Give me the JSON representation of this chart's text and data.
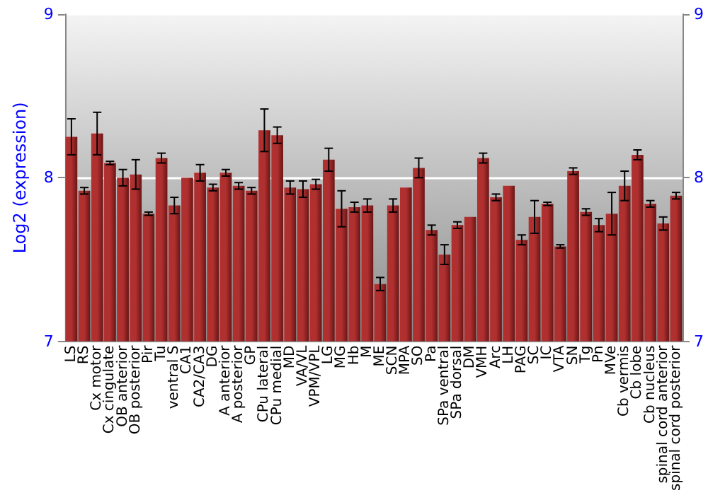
{
  "chart_data": {
    "type": "bar",
    "ylabel": "Log2 (expression)",
    "categories": [
      "LS",
      "RS",
      "Cx motor",
      "Cx cingulate",
      "OB anterior",
      "OB posterior",
      "Pir",
      "Tu",
      "ventral S",
      "CA1",
      "CA2/CA3",
      "DG",
      "A anterior",
      "A posterior",
      "GP",
      "CPu lateral",
      "CPu medial",
      "MD",
      "VA/VL",
      "VPM/VPL",
      "LG",
      "MG",
      "Hb",
      "M",
      "ME",
      "SCN",
      "MPA",
      "SO",
      "Pa",
      "SPa ventral",
      "SPa dorsal",
      "DM",
      "VMH",
      "Arc",
      "LH",
      "PAG",
      "SC",
      "IC",
      "VTA",
      "SN",
      "Tg",
      "Pn",
      "MVe",
      "Cb vermis",
      "Cb lobe",
      "Cb nucleus",
      "spinal cord anterior",
      "spinal cord posterior"
    ],
    "values": [
      8.25,
      7.92,
      8.27,
      8.09,
      8.0,
      8.02,
      7.78,
      8.12,
      7.83,
      8.0,
      8.03,
      7.94,
      8.03,
      7.95,
      7.92,
      8.29,
      8.26,
      7.94,
      7.93,
      7.96,
      8.11,
      7.81,
      7.82,
      7.83,
      7.35,
      7.83,
      7.94,
      8.06,
      7.68,
      7.53,
      7.71,
      7.76,
      8.12,
      7.88,
      7.95,
      7.62,
      7.76,
      7.84,
      7.58,
      8.04,
      7.79,
      7.71,
      7.78,
      7.95,
      8.14,
      7.84,
      7.72,
      7.89
    ],
    "errors": [
      0.11,
      0.02,
      0.13,
      0.01,
      0.05,
      0.09,
      0.01,
      0.03,
      0.05,
      null,
      0.05,
      0.02,
      0.02,
      0.02,
      0.02,
      0.13,
      0.05,
      0.04,
      0.05,
      0.03,
      0.07,
      0.11,
      0.03,
      0.04,
      0.04,
      0.04,
      null,
      0.06,
      0.03,
      0.06,
      0.02,
      null,
      0.03,
      0.02,
      null,
      0.03,
      0.1,
      0.01,
      0.01,
      0.02,
      0.02,
      0.04,
      0.13,
      0.09,
      0.03,
      0.02,
      0.04,
      0.02
    ],
    "color": "#b03030",
    "ylim": [
      7,
      9
    ],
    "yticks": [
      7,
      8,
      9
    ],
    "y2lim": [
      7,
      9
    ],
    "y2ticks": [
      7,
      8,
      9
    ],
    "grid": "y"
  }
}
